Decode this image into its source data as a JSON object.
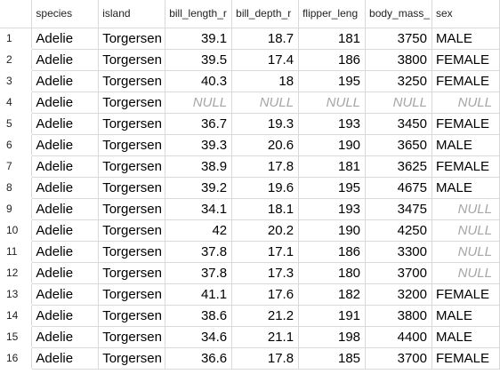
{
  "columns": [
    "species",
    "island",
    "bill_length_r",
    "bill_depth_r",
    "flipper_leng",
    "body_mass_",
    "sex"
  ],
  "null_text": "NULL",
  "rows": [
    {
      "n": "1",
      "species": "Adelie",
      "island": "Torgersen",
      "bill_length": "39.1",
      "bill_depth": "18.7",
      "flipper": "181",
      "mass": "3750",
      "sex": "MALE"
    },
    {
      "n": "2",
      "species": "Adelie",
      "island": "Torgersen",
      "bill_length": "39.5",
      "bill_depth": "17.4",
      "flipper": "186",
      "mass": "3800",
      "sex": "FEMALE"
    },
    {
      "n": "3",
      "species": "Adelie",
      "island": "Torgersen",
      "bill_length": "40.3",
      "bill_depth": "18",
      "flipper": "195",
      "mass": "3250",
      "sex": "FEMALE"
    },
    {
      "n": "4",
      "species": "Adelie",
      "island": "Torgersen",
      "bill_length": null,
      "bill_depth": null,
      "flipper": null,
      "mass": null,
      "sex": null
    },
    {
      "n": "5",
      "species": "Adelie",
      "island": "Torgersen",
      "bill_length": "36.7",
      "bill_depth": "19.3",
      "flipper": "193",
      "mass": "3450",
      "sex": "FEMALE"
    },
    {
      "n": "6",
      "species": "Adelie",
      "island": "Torgersen",
      "bill_length": "39.3",
      "bill_depth": "20.6",
      "flipper": "190",
      "mass": "3650",
      "sex": "MALE"
    },
    {
      "n": "7",
      "species": "Adelie",
      "island": "Torgersen",
      "bill_length": "38.9",
      "bill_depth": "17.8",
      "flipper": "181",
      "mass": "3625",
      "sex": "FEMALE"
    },
    {
      "n": "8",
      "species": "Adelie",
      "island": "Torgersen",
      "bill_length": "39.2",
      "bill_depth": "19.6",
      "flipper": "195",
      "mass": "4675",
      "sex": "MALE"
    },
    {
      "n": "9",
      "species": "Adelie",
      "island": "Torgersen",
      "bill_length": "34.1",
      "bill_depth": "18.1",
      "flipper": "193",
      "mass": "3475",
      "sex": null
    },
    {
      "n": "10",
      "species": "Adelie",
      "island": "Torgersen",
      "bill_length": "42",
      "bill_depth": "20.2",
      "flipper": "190",
      "mass": "4250",
      "sex": null
    },
    {
      "n": "11",
      "species": "Adelie",
      "island": "Torgersen",
      "bill_length": "37.8",
      "bill_depth": "17.1",
      "flipper": "186",
      "mass": "3300",
      "sex": null
    },
    {
      "n": "12",
      "species": "Adelie",
      "island": "Torgersen",
      "bill_length": "37.8",
      "bill_depth": "17.3",
      "flipper": "180",
      "mass": "3700",
      "sex": null
    },
    {
      "n": "13",
      "species": "Adelie",
      "island": "Torgersen",
      "bill_length": "41.1",
      "bill_depth": "17.6",
      "flipper": "182",
      "mass": "3200",
      "sex": "FEMALE"
    },
    {
      "n": "14",
      "species": "Adelie",
      "island": "Torgersen",
      "bill_length": "38.6",
      "bill_depth": "21.2",
      "flipper": "191",
      "mass": "3800",
      "sex": "MALE"
    },
    {
      "n": "15",
      "species": "Adelie",
      "island": "Torgersen",
      "bill_length": "34.6",
      "bill_depth": "21.1",
      "flipper": "198",
      "mass": "4400",
      "sex": "MALE"
    },
    {
      "n": "16",
      "species": "Adelie",
      "island": "Torgersen",
      "bill_length": "36.6",
      "bill_depth": "17.8",
      "flipper": "185",
      "mass": "3700",
      "sex": "FEMALE"
    }
  ]
}
